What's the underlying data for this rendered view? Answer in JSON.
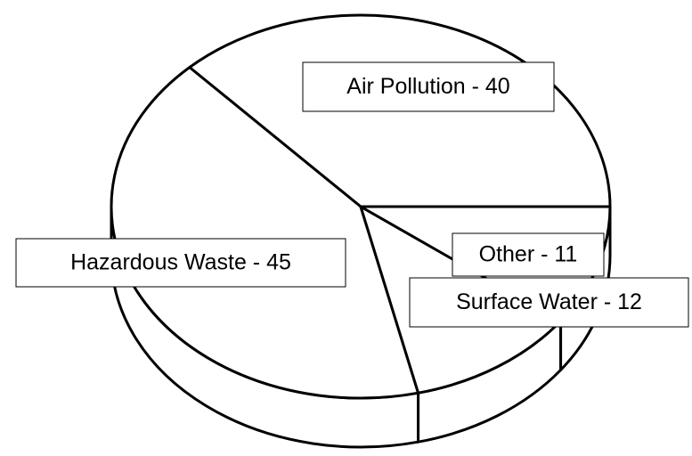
{
  "chart_data": {
    "type": "pie3d",
    "values": [
      40,
      45,
      12,
      11
    ],
    "value_labels": [
      "Air Pollution - 40",
      "Hazardous Waste - 45",
      "Surface Water - 12",
      "Other - 11"
    ],
    "color": "#ffffff"
  }
}
